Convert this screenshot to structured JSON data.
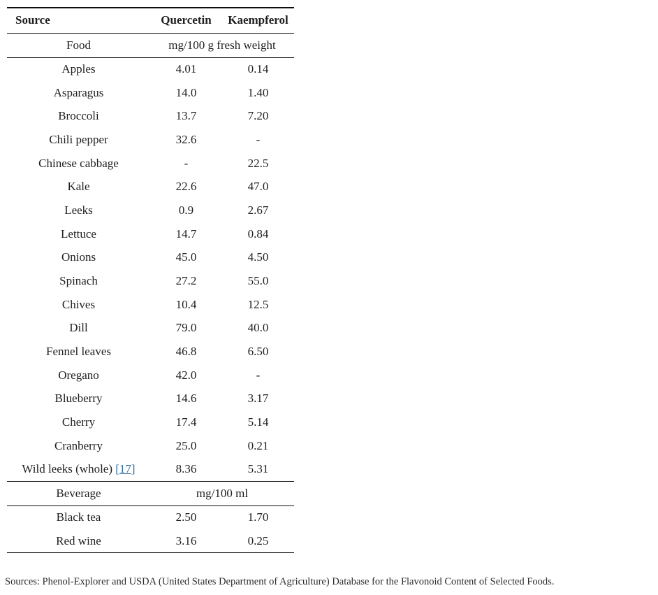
{
  "colors": {
    "link": "#2e6f9f",
    "text": "#1f1f1f",
    "rule": "#0d0d0d"
  },
  "table": {
    "columns": [
      "Source",
      "Quercetin",
      "Kaempferol"
    ],
    "sections": [
      {
        "group_label": "Food",
        "unit_label": "mg/100 g fresh weight",
        "rows": [
          {
            "source": "Apples",
            "quercetin": "4.01",
            "kaempferol": "0.14"
          },
          {
            "source": "Asparagus",
            "quercetin": "14.0",
            "kaempferol": "1.40"
          },
          {
            "source": "Broccoli",
            "quercetin": "13.7",
            "kaempferol": "7.20"
          },
          {
            "source": "Chili pepper",
            "quercetin": "32.6",
            "kaempferol": "-"
          },
          {
            "source": "Chinese cabbage",
            "quercetin": "-",
            "kaempferol": "22.5"
          },
          {
            "source": "Kale",
            "quercetin": "22.6",
            "kaempferol": "47.0"
          },
          {
            "source": "Leeks",
            "quercetin": "0.9",
            "kaempferol": "2.67"
          },
          {
            "source": "Lettuce",
            "quercetin": "14.7",
            "kaempferol": "0.84"
          },
          {
            "source": "Onions",
            "quercetin": "45.0",
            "kaempferol": "4.50"
          },
          {
            "source": "Spinach",
            "quercetin": "27.2",
            "kaempferol": "55.0"
          },
          {
            "source": "Chives",
            "quercetin": "10.4",
            "kaempferol": "12.5"
          },
          {
            "source": "Dill",
            "quercetin": "79.0",
            "kaempferol": "40.0"
          },
          {
            "source": "Fennel leaves",
            "quercetin": "46.8",
            "kaempferol": "6.50"
          },
          {
            "source": "Oregano",
            "quercetin": "42.0",
            "kaempferol": "-"
          },
          {
            "source": "Blueberry",
            "quercetin": "14.6",
            "kaempferol": "3.17"
          },
          {
            "source": "Cherry",
            "quercetin": "17.4",
            "kaempferol": "5.14"
          },
          {
            "source": "Cranberry",
            "quercetin": "25.0",
            "kaempferol": "0.21"
          },
          {
            "source": "Wild leeks (whole)",
            "citation": "17",
            "quercetin": "8.36",
            "kaempferol": "5.31"
          }
        ]
      },
      {
        "group_label": "Beverage",
        "unit_label": "mg/100 ml",
        "rows": [
          {
            "source": "Black tea",
            "quercetin": "2.50",
            "kaempferol": "1.70"
          },
          {
            "source": "Red wine",
            "quercetin": "3.16",
            "kaempferol": "0.25"
          }
        ]
      }
    ]
  },
  "footnote": "Sources: Phenol-Explorer and USDA (United States Department of Agriculture) Database for the Flavonoid Content of Selected Foods."
}
